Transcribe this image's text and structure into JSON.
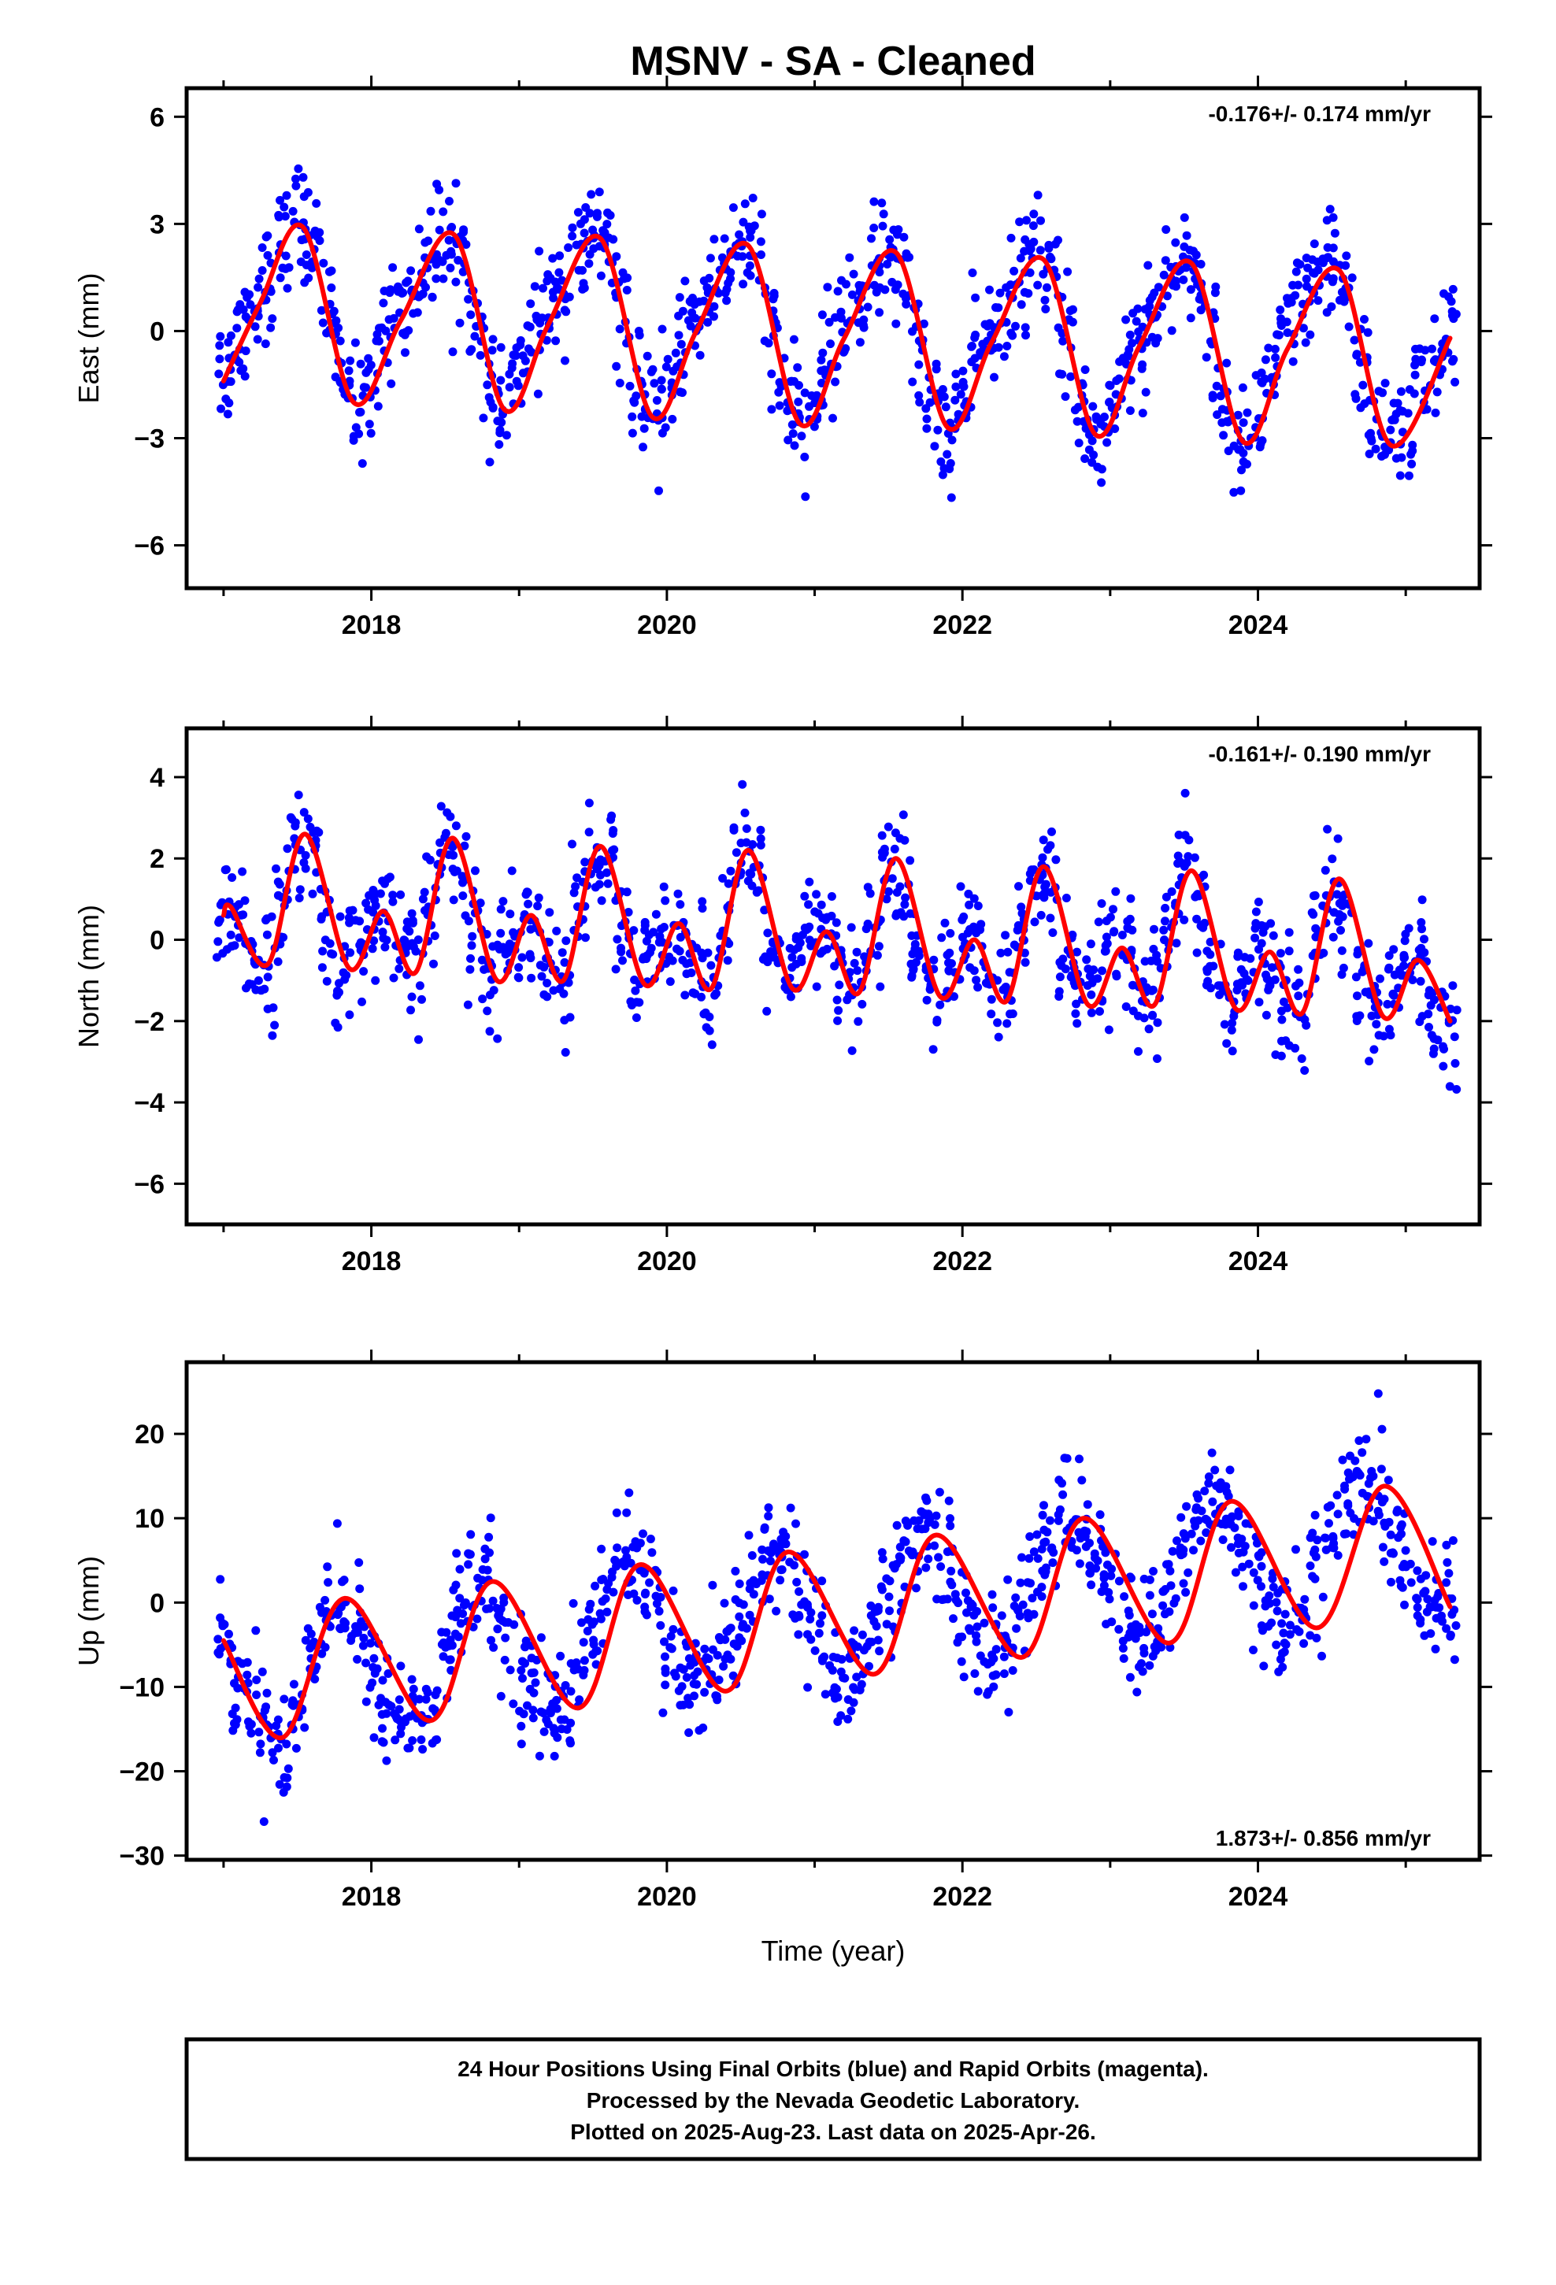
{
  "title": "MSNV  - SA - Cleaned",
  "xlabel": "Time (year)",
  "footer": [
    "24 Hour Positions Using Final Orbits (blue) and Rapid Orbits (magenta).",
    "Processed by the Nevada Geodetic Laboratory.",
    "Plotted on 2025-Aug-23. Last data on 2025-Apr-26."
  ],
  "colors": {
    "observations": "#0000ff",
    "model": "#ff0000",
    "frame": "#000000"
  },
  "chart_data": [
    {
      "type": "scatter",
      "name": "east",
      "ylabel": "East (mm)",
      "rate_label": "-0.176+/- 0.174 mm/yr",
      "xlim": [
        2016.75,
        2025.5
      ],
      "ylim": [
        -7.2,
        6.8
      ],
      "yticks": [
        -6,
        -3,
        0,
        3,
        6
      ],
      "ytick_labels": [
        "−6",
        "−3",
        "0",
        "3",
        "6"
      ],
      "xticks": [
        2018,
        2020,
        2022,
        2024
      ],
      "xtick_labels": [
        "2018",
        "2020",
        "2022",
        "2024"
      ],
      "series": [
        {
          "name": "Final Orbits",
          "mark": "points",
          "x": [
            2017.0,
            2017.1,
            2017.2,
            2017.3,
            2017.4,
            2017.5,
            2017.6,
            2017.7,
            2017.8,
            2017.9,
            2018.0,
            2018.1,
            2018.2,
            2018.3,
            2018.4,
            2018.5,
            2018.6,
            2018.7,
            2018.8,
            2018.9,
            2019.0,
            2019.1,
            2019.2,
            2019.3,
            2019.4,
            2019.5,
            2019.6,
            2019.7,
            2019.8,
            2019.9,
            2020.0,
            2020.1,
            2020.2,
            2020.3,
            2020.4,
            2020.5,
            2020.6,
            2020.7,
            2020.8,
            2020.9,
            2021.0,
            2021.1,
            2021.2,
            2021.3,
            2021.4,
            2021.5,
            2021.6,
            2021.7,
            2021.8,
            2021.9,
            2022.0,
            2022.1,
            2022.2,
            2022.3,
            2022.4,
            2022.5,
            2022.6,
            2022.7,
            2022.8,
            2022.9,
            2023.0,
            2023.1,
            2023.2,
            2023.3,
            2023.4,
            2023.5,
            2023.6,
            2023.7,
            2023.8,
            2023.9,
            2024.0,
            2024.1,
            2024.2,
            2024.3,
            2024.4,
            2024.5,
            2024.6,
            2024.7,
            2024.8,
            2024.9,
            2025.0,
            2025.1,
            2025.2,
            2025.3
          ],
          "y": [
            -1.1,
            0.1,
            0.7,
            1.5,
            2.4,
            3.1,
            2.6,
            0.9,
            -1.2,
            -2.0,
            -1.4,
            0.3,
            0.8,
            1.2,
            1.9,
            2.8,
            2.1,
            0.5,
            -1.7,
            -2.2,
            -1.3,
            0.1,
            0.7,
            1.4,
            2.0,
            2.7,
            2.3,
            0.4,
            -1.6,
            -2.5,
            -1.8,
            -0.3,
            0.4,
            1.1,
            1.8,
            2.5,
            2.1,
            0.0,
            -1.9,
            -2.6,
            -1.9,
            -0.6,
            0.2,
            1.0,
            1.7,
            2.3,
            1.6,
            -0.4,
            -2.2,
            -2.8,
            -2.0,
            -0.8,
            0.0,
            0.8,
            1.5,
            2.1,
            1.7,
            -0.3,
            -2.4,
            -2.9,
            -2.1,
            -0.9,
            -0.1,
            0.7,
            1.4,
            1.9,
            1.5,
            -0.6,
            -2.5,
            -3.0,
            -2.2,
            -1.0,
            -0.1,
            0.7,
            1.3,
            1.7,
            1.2,
            -0.9,
            -2.6,
            -3.1,
            -2.5,
            -1.6,
            -0.9,
            -0.3
          ]
        },
        {
          "name": "Seasonal model",
          "mark": "line",
          "x": [
            2017.0,
            2017.25,
            2017.54,
            2017.88,
            2018.2,
            2018.56,
            2018.9,
            2019.2,
            2019.55,
            2019.9,
            2020.2,
            2020.55,
            2020.9,
            2021.2,
            2021.55,
            2021.9,
            2022.2,
            2022.55,
            2022.9,
            2023.2,
            2023.55,
            2023.9,
            2024.2,
            2024.55,
            2024.9,
            2025.3
          ],
          "y": [
            -1.4,
            0.8,
            2.9,
            -2.0,
            0.3,
            2.7,
            -2.2,
            0.2,
            2.6,
            -2.4,
            0.0,
            2.4,
            -2.6,
            -0.2,
            2.2,
            -2.7,
            -0.3,
            2.0,
            -2.9,
            -0.4,
            1.9,
            -3.1,
            -0.5,
            1.7,
            -3.2,
            -0.2
          ]
        }
      ]
    },
    {
      "type": "scatter",
      "name": "north",
      "ylabel": "North (mm)",
      "rate_label": "-0.161+/- 0.190 mm/yr",
      "xlim": [
        2016.75,
        2025.5
      ],
      "ylim": [
        -7.0,
        5.2
      ],
      "yticks": [
        -6,
        -4,
        -2,
        0,
        2,
        4
      ],
      "ytick_labels": [
        "−6",
        "−4",
        "−2",
        "0",
        "2",
        "4"
      ],
      "xticks": [
        2018,
        2020,
        2022,
        2024
      ],
      "xtick_labels": [
        "2018",
        "2020",
        "2022",
        "2024"
      ],
      "series": [
        {
          "name": "Final Orbits",
          "mark": "points",
          "x": [
            2017.0,
            2017.1,
            2017.2,
            2017.3,
            2017.4,
            2017.5,
            2017.6,
            2017.7,
            2017.8,
            2017.9,
            2018.0,
            2018.1,
            2018.2,
            2018.3,
            2018.4,
            2018.5,
            2018.6,
            2018.7,
            2018.8,
            2018.9,
            2019.0,
            2019.1,
            2019.2,
            2019.3,
            2019.4,
            2019.5,
            2019.6,
            2019.7,
            2019.8,
            2019.9,
            2020.0,
            2020.1,
            2020.2,
            2020.3,
            2020.4,
            2020.5,
            2020.6,
            2020.7,
            2020.8,
            2020.9,
            2021.0,
            2021.1,
            2021.2,
            2021.3,
            2021.4,
            2021.5,
            2021.6,
            2021.7,
            2021.8,
            2021.9,
            2022.0,
            2022.1,
            2022.2,
            2022.3,
            2022.4,
            2022.5,
            2022.6,
            2022.7,
            2022.8,
            2022.9,
            2023.0,
            2023.1,
            2023.2,
            2023.3,
            2023.4,
            2023.5,
            2023.6,
            2023.7,
            2023.8,
            2023.9,
            2024.0,
            2024.1,
            2024.2,
            2024.3,
            2024.4,
            2024.5,
            2024.6,
            2024.7,
            2024.8,
            2024.9,
            2025.0,
            2025.1,
            2025.2,
            2025.3
          ],
          "y": [
            0.2,
            0.6,
            -0.4,
            -0.6,
            0.8,
            2.3,
            2.1,
            0.4,
            -0.9,
            -0.3,
            0.6,
            0.5,
            -0.4,
            -0.7,
            0.9,
            2.2,
            2.0,
            0.3,
            -0.9,
            -0.2,
            0.5,
            0.4,
            -0.6,
            -0.8,
            0.8,
            2.1,
            1.8,
            0.1,
            -1.1,
            -0.3,
            0.4,
            0.2,
            -0.8,
            -1.0,
            0.6,
            2.0,
            1.6,
            -0.1,
            -1.2,
            -0.4,
            0.2,
            0.0,
            -1.0,
            -1.1,
            0.4,
            1.8,
            1.4,
            -0.4,
            -1.3,
            -0.6,
            0.0,
            -0.2,
            -1.2,
            -1.3,
            0.2,
            1.6,
            1.2,
            -0.6,
            -1.5,
            -0.8,
            -0.2,
            -0.4,
            -1.4,
            -1.5,
            0.1,
            1.5,
            1.1,
            -0.8,
            -1.6,
            -1.0,
            -0.3,
            -0.6,
            -1.5,
            -1.6,
            -0.1,
            1.3,
            0.9,
            -1.0,
            -1.8,
            -1.1,
            -0.5,
            -0.7,
            -1.6,
            -1.9
          ]
        },
        {
          "name": "Seasonal model",
          "mark": "line",
          "x": [
            2017.0,
            2017.05,
            2017.3,
            2017.55,
            2017.85,
            2018.08,
            2018.3,
            2018.55,
            2018.85,
            2019.08,
            2019.3,
            2019.55,
            2019.85,
            2020.08,
            2020.3,
            2020.55,
            2020.85,
            2021.08,
            2021.3,
            2021.55,
            2021.85,
            2022.08,
            2022.3,
            2022.55,
            2022.85,
            2023.08,
            2023.3,
            2023.55,
            2023.85,
            2024.08,
            2024.3,
            2024.55,
            2024.85,
            2025.08,
            2025.3
          ],
          "y": [
            0.6,
            0.8,
            -0.6,
            2.6,
            -0.7,
            0.7,
            -0.8,
            2.5,
            -1.0,
            0.6,
            -1.0,
            2.3,
            -1.1,
            0.4,
            -1.2,
            2.2,
            -1.2,
            0.2,
            -1.3,
            2.0,
            -1.4,
            0.0,
            -1.5,
            1.8,
            -1.6,
            -0.2,
            -1.6,
            1.7,
            -1.7,
            -0.3,
            -1.8,
            1.5,
            -1.9,
            -0.5,
            -2.0
          ]
        }
      ]
    },
    {
      "type": "scatter",
      "name": "up",
      "ylabel": "Up (mm)",
      "rate_label": "1.873+/- 0.856 mm/yr",
      "xlim": [
        2016.75,
        2025.5
      ],
      "ylim": [
        -30.5,
        28.5
      ],
      "yticks": [
        -30,
        -20,
        -10,
        0,
        10,
        20
      ],
      "ytick_labels": [
        "−30",
        "−20",
        "−10",
        "0",
        "10",
        "20"
      ],
      "xticks": [
        2018,
        2020,
        2022,
        2024
      ],
      "xtick_labels": [
        "2018",
        "2020",
        "2022",
        "2024"
      ],
      "series": [
        {
          "name": "Final Orbits",
          "mark": "points",
          "x": [
            2017.0,
            2017.1,
            2017.2,
            2017.3,
            2017.4,
            2017.5,
            2017.6,
            2017.7,
            2017.8,
            2017.9,
            2018.0,
            2018.1,
            2018.2,
            2018.3,
            2018.4,
            2018.5,
            2018.6,
            2018.7,
            2018.8,
            2018.9,
            2019.0,
            2019.1,
            2019.2,
            2019.3,
            2019.4,
            2019.5,
            2019.6,
            2019.7,
            2019.8,
            2019.9,
            2020.0,
            2020.1,
            2020.2,
            2020.3,
            2020.4,
            2020.5,
            2020.6,
            2020.7,
            2020.8,
            2020.9,
            2021.0,
            2021.1,
            2021.2,
            2021.3,
            2021.4,
            2021.5,
            2021.6,
            2021.7,
            2021.8,
            2021.9,
            2022.0,
            2022.1,
            2022.2,
            2022.3,
            2022.4,
            2022.5,
            2022.6,
            2022.7,
            2022.8,
            2022.9,
            2023.0,
            2023.1,
            2023.2,
            2023.3,
            2023.4,
            2023.5,
            2023.6,
            2023.7,
            2023.8,
            2023.9,
            2024.0,
            2024.1,
            2024.2,
            2024.3,
            2024.4,
            2024.5,
            2024.6,
            2024.7,
            2024.8,
            2024.9,
            2025.0,
            2025.1,
            2025.2,
            2025.3
          ],
          "y": [
            -5.0,
            -9.0,
            -12.5,
            -15.0,
            -16.5,
            -13.0,
            -6.0,
            0.0,
            0.5,
            -3.0,
            -8.5,
            -12.0,
            -13.5,
            -14.0,
            -12.0,
            -6.5,
            -1.0,
            2.0,
            1.5,
            -2.5,
            -7.0,
            -11.0,
            -12.5,
            -11.5,
            -8.0,
            -2.5,
            2.0,
            4.5,
            4.0,
            1.0,
            -4.0,
            -8.5,
            -10.0,
            -9.5,
            -6.5,
            -1.5,
            3.0,
            6.0,
            5.5,
            2.0,
            -3.0,
            -7.0,
            -8.5,
            -7.5,
            -4.0,
            1.0,
            5.5,
            8.0,
            7.5,
            4.0,
            -1.0,
            -5.0,
            -6.5,
            -5.0,
            -1.5,
            3.5,
            8.0,
            10.0,
            9.5,
            6.0,
            1.0,
            -3.0,
            -4.5,
            -3.0,
            1.0,
            6.0,
            10.5,
            12.0,
            11.0,
            7.5,
            2.5,
            -1.5,
            -3.0,
            -1.0,
            3.5,
            8.5,
            12.5,
            14.0,
            12.5,
            9.0,
            4.5,
            1.0,
            -0.5,
            -1.0
          ]
        },
        {
          "name": "Seasonal model",
          "mark": "line",
          "x": [
            2017.0,
            2017.4,
            2017.82,
            2018.4,
            2018.82,
            2019.4,
            2019.82,
            2020.4,
            2020.82,
            2021.4,
            2021.82,
            2022.4,
            2022.82,
            2023.4,
            2023.82,
            2024.4,
            2024.85,
            2025.3
          ],
          "y": [
            -4.5,
            -16.0,
            0.5,
            -14.0,
            2.5,
            -12.5,
            4.5,
            -10.5,
            6.0,
            -8.5,
            8.0,
            -6.5,
            10.0,
            -4.8,
            12.0,
            -3.0,
            13.8,
            -0.5
          ]
        }
      ]
    }
  ]
}
